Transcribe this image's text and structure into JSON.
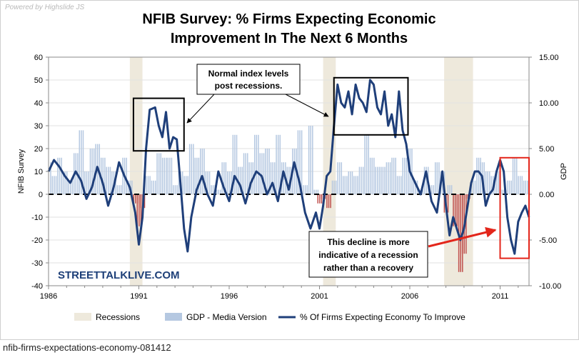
{
  "credit": "Powered by  Highslide JS",
  "caption": "nfib-firms-expectations-economy-081412",
  "colors": {
    "line": "#1f3f7a",
    "gdp_positive": "#b5c8e1",
    "gdp_negative": "#c0504d",
    "recession": "#eee9dc",
    "annotation_box": "#000000",
    "annotation_red": "#e3261b",
    "watermark": "#1d3f78"
  },
  "chart_data": {
    "type": "line",
    "title": "NFIB Survey:  % Firms Expecting Economic Improvement In The  Next 6 Months",
    "title_lines": [
      "NFIB Survey:  % Firms Expecting Economic",
      "Improvement In The  Next 6 Months"
    ],
    "ylabel": "NFIB Survey",
    "y2label": "GDP",
    "xlim": [
      1986,
      2012.6
    ],
    "ylim": [
      -40,
      60
    ],
    "y2lim": [
      -10,
      15
    ],
    "x_ticks": [
      1986,
      1991,
      1996,
      2001,
      2006,
      2011
    ],
    "y_ticks": [
      "-40",
      "-30",
      "-20",
      "-10",
      "0",
      "10",
      "20",
      "30",
      "40",
      "50",
      "60"
    ],
    "y2_ticks": [
      "-10.00",
      "-5.00",
      "0.00",
      "5.00",
      "10.00",
      "15.00"
    ],
    "recessions": [
      [
        1990.5,
        1991.2
      ],
      [
        2001.2,
        2001.9
      ],
      [
        2007.9,
        2009.5
      ]
    ],
    "series": [
      {
        "name": "% Of Firms Expecting Economy To Improve",
        "axis": "left",
        "x": [
          1986.0,
          1986.3,
          1986.6,
          1986.9,
          1987.2,
          1987.5,
          1987.8,
          1988.1,
          1988.4,
          1988.7,
          1989.0,
          1989.3,
          1989.6,
          1989.9,
          1990.2,
          1990.5,
          1990.8,
          1991.0,
          1991.2,
          1991.4,
          1991.6,
          1991.9,
          1992.1,
          1992.3,
          1992.5,
          1992.7,
          1992.9,
          1993.1,
          1993.3,
          1993.5,
          1993.7,
          1993.9,
          1994.2,
          1994.5,
          1994.8,
          1995.1,
          1995.4,
          1995.7,
          1996.0,
          1996.3,
          1996.6,
          1996.9,
          1997.2,
          1997.5,
          1997.8,
          1998.1,
          1998.4,
          1998.7,
          1999.0,
          1999.3,
          1999.6,
          1999.9,
          2000.2,
          2000.5,
          2000.8,
          2001.0,
          2001.2,
          2001.4,
          2001.6,
          2001.8,
          2002.0,
          2002.2,
          2002.4,
          2002.6,
          2002.8,
          2003.0,
          2003.2,
          2003.4,
          2003.6,
          2003.8,
          2004.0,
          2004.2,
          2004.4,
          2004.6,
          2004.8,
          2005.0,
          2005.2,
          2005.4,
          2005.6,
          2005.8,
          2006.0,
          2006.3,
          2006.6,
          2006.9,
          2007.2,
          2007.5,
          2007.8,
          2008.0,
          2008.2,
          2008.4,
          2008.6,
          2008.8,
          2009.0,
          2009.2,
          2009.4,
          2009.6,
          2009.8,
          2010.0,
          2010.2,
          2010.4,
          2010.6,
          2010.8,
          2011.0,
          2011.2,
          2011.4,
          2011.6,
          2011.8,
          2012.0,
          2012.2,
          2012.4,
          2012.6
        ],
        "values": [
          10,
          15,
          12,
          8,
          5,
          10,
          6,
          -2,
          3,
          12,
          5,
          -5,
          3,
          14,
          8,
          3,
          -8,
          -22,
          -10,
          20,
          37,
          38,
          30,
          25,
          36,
          20,
          25,
          24,
          5,
          -15,
          -25,
          -10,
          2,
          8,
          0,
          -5,
          10,
          3,
          -3,
          8,
          4,
          -4,
          5,
          10,
          8,
          0,
          5,
          -3,
          10,
          2,
          14,
          5,
          -8,
          -15,
          -8,
          -15,
          -5,
          8,
          10,
          30,
          48,
          40,
          38,
          45,
          35,
          48,
          42,
          40,
          36,
          50,
          48,
          38,
          35,
          45,
          30,
          35,
          25,
          45,
          28,
          22,
          10,
          5,
          0,
          10,
          -3,
          -8,
          10,
          -5,
          -18,
          -10,
          -15,
          -20,
          -15,
          -5,
          5,
          10,
          10,
          8,
          -5,
          0,
          2,
          10,
          15,
          10,
          -10,
          -20,
          -26,
          -12,
          -8,
          -5,
          -10
        ]
      },
      {
        "name": "GDP - Media Version",
        "axis": "right",
        "x": [
          1986.0,
          1986.3,
          1986.6,
          1986.9,
          1987.2,
          1987.5,
          1987.8,
          1988.1,
          1988.4,
          1988.7,
          1989.0,
          1989.3,
          1989.6,
          1989.9,
          1990.2,
          1990.5,
          1990.8,
          1991.0,
          1991.2,
          1991.5,
          1991.8,
          1992.1,
          1992.4,
          1992.7,
          1993.0,
          1993.3,
          1993.6,
          1993.9,
          1994.2,
          1994.5,
          1994.8,
          1995.1,
          1995.4,
          1995.7,
          1996.0,
          1996.3,
          1996.6,
          1996.9,
          1997.2,
          1997.5,
          1997.8,
          1998.1,
          1998.4,
          1998.7,
          1999.0,
          1999.3,
          1999.6,
          1999.9,
          2000.2,
          2000.5,
          2000.8,
          2001.0,
          2001.2,
          2001.5,
          2001.8,
          2002.1,
          2002.4,
          2002.7,
          2003.0,
          2003.3,
          2003.6,
          2003.9,
          2004.2,
          2004.5,
          2004.8,
          2005.1,
          2005.4,
          2005.7,
          2006.0,
          2006.3,
          2006.6,
          2006.9,
          2007.2,
          2007.5,
          2007.8,
          2008.0,
          2008.2,
          2008.5,
          2008.8,
          2009.0,
          2009.2,
          2009.5,
          2009.8,
          2010.0,
          2010.3,
          2010.6,
          2010.9,
          2011.2,
          2011.5,
          2011.8,
          2012.1,
          2012.4
        ],
        "values": [
          3.5,
          2.0,
          4.0,
          2.5,
          1.5,
          4.5,
          7.0,
          2.5,
          5.0,
          5.5,
          4.0,
          3.0,
          2.5,
          1.0,
          4.0,
          1.5,
          -1.0,
          -3.5,
          -1.5,
          2.0,
          1.5,
          4.5,
          4.0,
          4.0,
          1.0,
          2.5,
          2.0,
          5.5,
          4.0,
          5.0,
          2.5,
          1.0,
          0.5,
          3.5,
          2.5,
          6.5,
          3.0,
          4.5,
          3.5,
          6.5,
          4.5,
          5.0,
          3.5,
          6.5,
          3.5,
          3.0,
          5.0,
          7.0,
          1.0,
          7.5,
          0.5,
          -1.0,
          -0.5,
          -1.5,
          1.5,
          3.5,
          2.0,
          2.5,
          2.0,
          3.0,
          6.5,
          4.0,
          3.0,
          3.0,
          3.5,
          4.0,
          2.0,
          4.0,
          5.0,
          1.5,
          0.5,
          3.0,
          1.0,
          3.5,
          2.5,
          -2.0,
          1.0,
          -3.5,
          -8.5,
          -6.5,
          -0.5,
          1.5,
          4.0,
          3.5,
          2.5,
          2.0,
          2.5,
          0.5,
          1.5,
          4.0,
          2.0,
          1.5
        ]
      }
    ],
    "legend": [
      {
        "key": "recession",
        "label": "Recessions"
      },
      {
        "key": "gdp",
        "label": "GDP - Media Version"
      },
      {
        "key": "line",
        "label": "% Of Firms Expecting Economy To Improve"
      }
    ],
    "watermark": "STREETTALKLIVE.COM",
    "annotations": [
      {
        "id": "normal",
        "lines": [
          "Normal index levels",
          "post recessions."
        ]
      },
      {
        "id": "decline",
        "lines": [
          "This decline is more",
          "indicative of a recession",
          "rather than a recovery"
        ]
      }
    ],
    "highlight_boxes": [
      {
        "x": [
          1990.7,
          1993.5
        ],
        "y": [
          19,
          42
        ]
      },
      {
        "x": [
          2001.8,
          2005.9
        ],
        "y": [
          26,
          51
        ]
      },
      {
        "x": [
          2011.0,
          2012.6
        ],
        "y": [
          -28,
          16
        ]
      }
    ]
  }
}
